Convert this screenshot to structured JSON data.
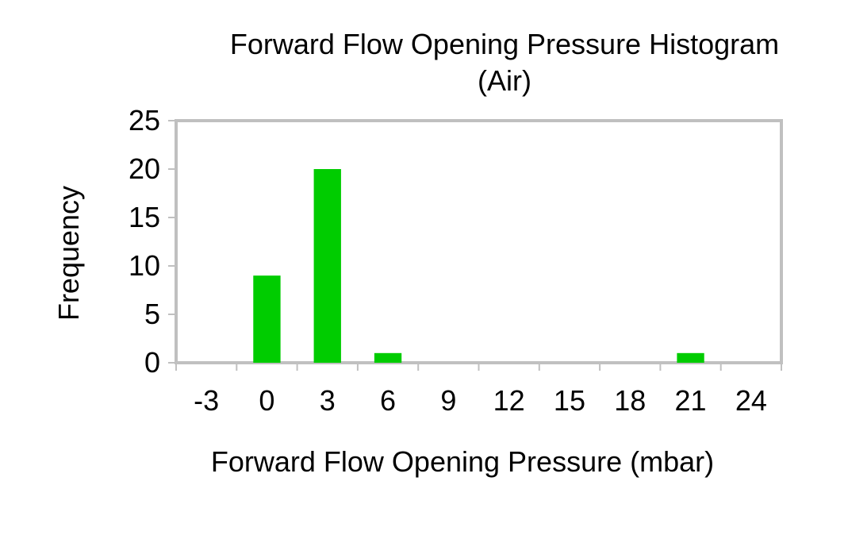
{
  "chart_data": {
    "type": "bar",
    "title": "Forward Flow Opening Pressure Histogram",
    "subtitle": "(Air)",
    "xlabel": "Forward Flow Opening Pressure (mbar)",
    "ylabel": "Frequency",
    "categories": [
      "-3",
      "0",
      "3",
      "6",
      "9",
      "12",
      "15",
      "18",
      "21",
      "24"
    ],
    "values": [
      0,
      9,
      20,
      1,
      0,
      0,
      0,
      0,
      1,
      0
    ],
    "y_ticks": [
      "0",
      "5",
      "10",
      "15",
      "20",
      "25"
    ],
    "ylim": [
      0,
      25
    ],
    "grid": false,
    "legend": "none",
    "bar_color": "#00CC00",
    "frame_color": "#C0C0C0"
  }
}
